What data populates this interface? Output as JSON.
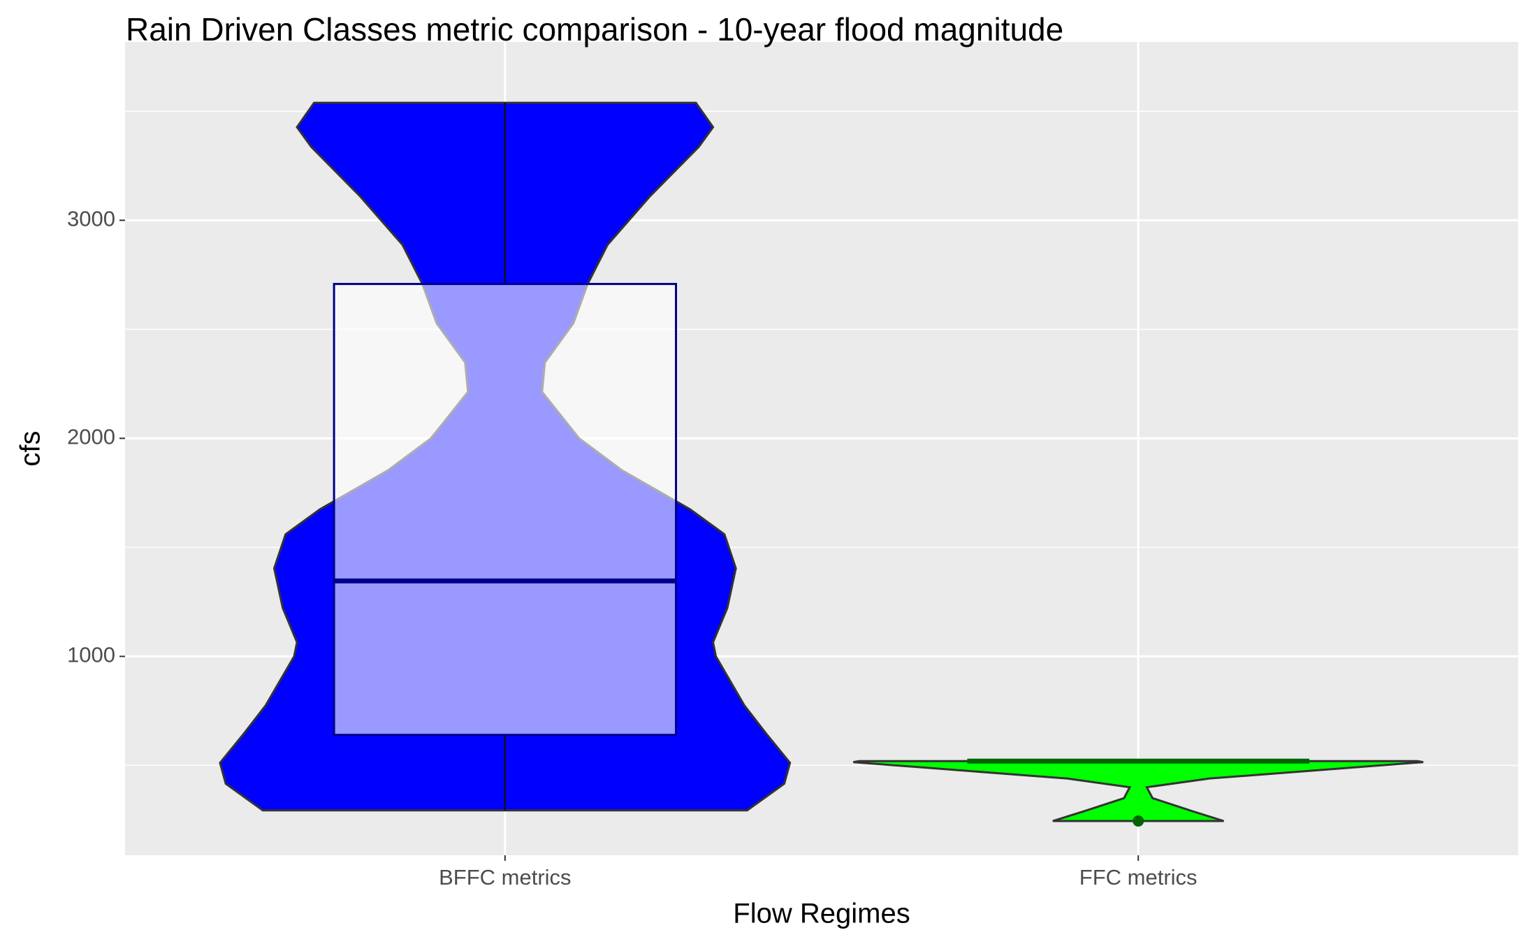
{
  "chart_data": {
    "type": "violin",
    "title": "Rain Driven Classes metric comparison - 10-year flood magnitude",
    "x_label": "Flow Regimes",
    "y_label": "cfs",
    "categories": [
      "BFFC metrics",
      "FFC metrics"
    ],
    "ylim": [
      88,
      3818
    ],
    "yticks": [
      1000,
      2000,
      3000
    ],
    "yminor": [
      500,
      1500,
      2500,
      3500
    ],
    "grid": true,
    "groups": [
      {
        "color": "#0000ff",
        "box_color": "#00008b",
        "violin": {
          "y": [
            294,
            416,
            512,
            640,
            775,
            1000,
            1065,
            1222,
            1404,
            1560,
            1674,
            1854,
            2000,
            2213,
            2348,
            2528,
            2708,
            2888,
            3112,
            3337,
            3427,
            3539
          ],
          "density": [
            0.85,
            0.98,
            1,
            0.92,
            0.84,
            0.74,
            0.73,
            0.78,
            0.81,
            0.77,
            0.65,
            0.41,
            0.26,
            0.13,
            0.14,
            0.24,
            0.29,
            0.36,
            0.51,
            0.68,
            0.73,
            0.67
          ]
        },
        "box": {
          "whisker_low": 294,
          "q1": 640,
          "median": 1346,
          "q3": 2708,
          "whisker_high": 3539
        },
        "outliers": []
      },
      {
        "color": "#00ff00",
        "box_color": "#006400",
        "violin": {
          "y": [
            245,
            290,
            350,
            400,
            440,
            490,
            515,
            520
          ],
          "density": [
            0.3,
            0.19,
            0.05,
            0.03,
            0.25,
            0.75,
            1,
            0.98
          ]
        },
        "box": {
          "whisker_low": 520,
          "q1": 520,
          "median": 520,
          "q3": 520,
          "whisker_high": 520
        },
        "outliers": [
          245
        ]
      }
    ]
  }
}
